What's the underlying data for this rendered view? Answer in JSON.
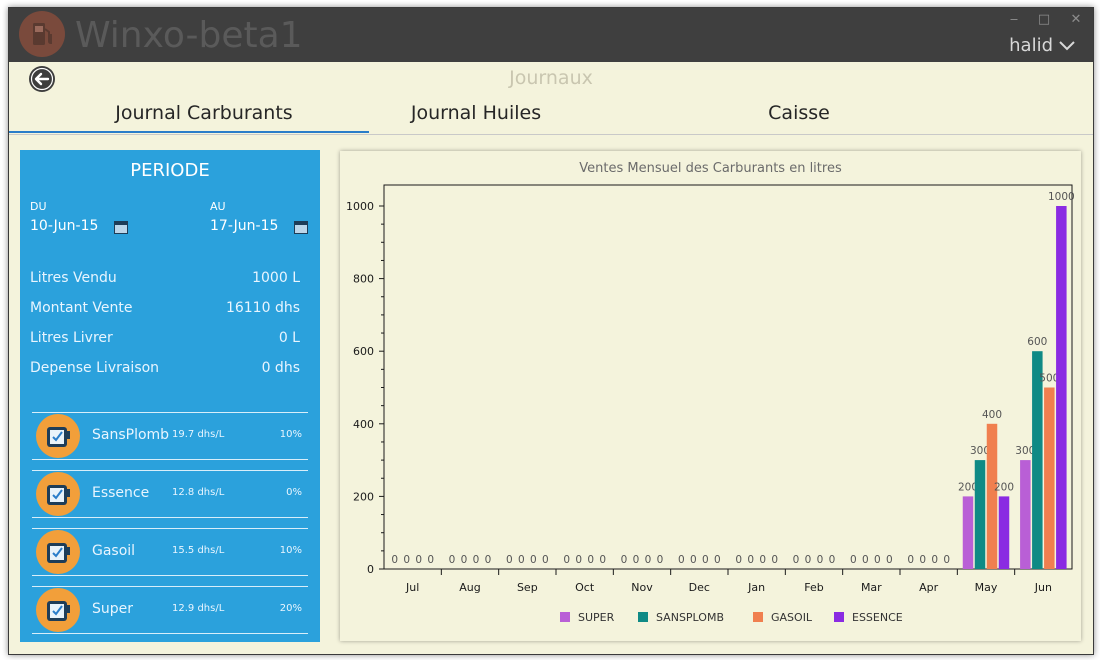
{
  "window": {
    "title": "Winxo-beta1",
    "user": "halid",
    "buttons": {
      "minimize": "‒",
      "maximize": "□",
      "close": "✕"
    },
    "icons": [
      "fuel-pump-icon",
      "chevron-down-icon",
      "back-arrow-icon"
    ]
  },
  "page": {
    "title": "Journaux"
  },
  "tabs": [
    {
      "label": "Journal Carburants",
      "active": true
    },
    {
      "label": "Journal Huiles",
      "active": false
    },
    {
      "label": "Caisse",
      "active": false
    }
  ],
  "periode": {
    "title": "PERIODE",
    "du_label": "DU",
    "du_value": "10-Jun-15",
    "au_label": "AU",
    "au_value": "17-Jun-15"
  },
  "stats": [
    {
      "label": "Litres Vendu",
      "value": "1000 L"
    },
    {
      "label": "Montant Vente",
      "value": "16110 dhs"
    },
    {
      "label": "Litres Livrer",
      "value": "0 L"
    },
    {
      "label": "Depense Livraison",
      "value": "0 dhs"
    }
  ],
  "fuels": [
    {
      "name": "SansPlomb",
      "price": "19.7 dhs/L",
      "pct": "10%"
    },
    {
      "name": "Essence",
      "price": "12.8 dhs/L",
      "pct": "0%"
    },
    {
      "name": "Gasoil",
      "price": "15.5 dhs/L",
      "pct": "10%"
    },
    {
      "name": "Super",
      "price": "12.9 dhs/L",
      "pct": "20%"
    }
  ],
  "chart_data": {
    "type": "bar",
    "title": "Ventes Mensuel des Carburants en litres",
    "xlabel": "",
    "ylabel": "",
    "categories": [
      "Jul",
      "Aug",
      "Sep",
      "Oct",
      "Nov",
      "Dec",
      "Jan",
      "Feb",
      "Mar",
      "Apr",
      "May",
      "Jun"
    ],
    "ylim": [
      0,
      1000
    ],
    "yticks": [
      0,
      200,
      400,
      600,
      800,
      1000
    ],
    "grid": false,
    "legend_position": "bottom",
    "series": [
      {
        "name": "SUPER",
        "color": "#b95fd6",
        "values": [
          0,
          0,
          0,
          0,
          0,
          0,
          0,
          0,
          0,
          0,
          200,
          300
        ]
      },
      {
        "name": "SANSPLOMB",
        "color": "#0f8a85",
        "values": [
          0,
          0,
          0,
          0,
          0,
          0,
          0,
          0,
          0,
          0,
          300,
          600
        ]
      },
      {
        "name": "GASOIL",
        "color": "#f07f4f",
        "values": [
          0,
          0,
          0,
          0,
          0,
          0,
          0,
          0,
          0,
          0,
          400,
          500
        ]
      },
      {
        "name": "ESSENCE",
        "color": "#8a2be2",
        "values": [
          0,
          0,
          0,
          0,
          0,
          0,
          0,
          0,
          0,
          0,
          200,
          1000
        ]
      }
    ]
  }
}
